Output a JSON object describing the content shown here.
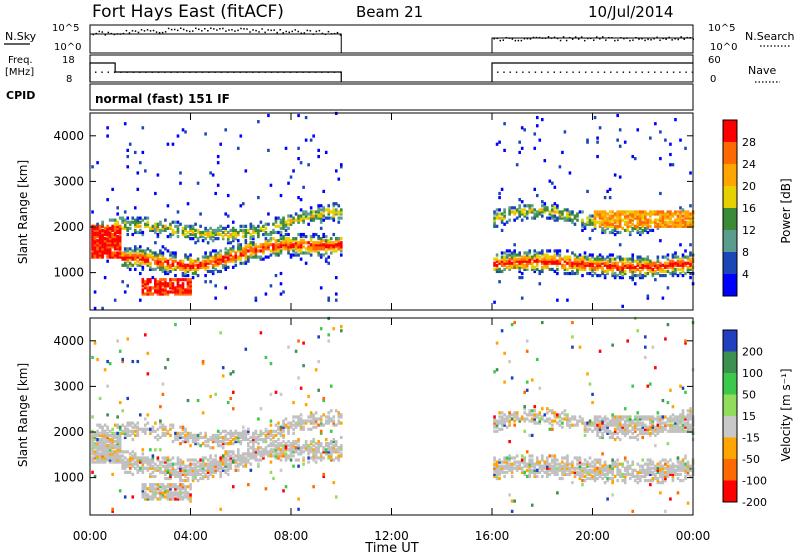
{
  "header": {
    "station": "Fort Hays East (fitACF)",
    "beam": "Beam 21",
    "date": "10/Jul/2014"
  },
  "status_panels": {
    "nsky_label": "N.Sky",
    "nsky_ticks": [
      "10^5",
      "10^0"
    ],
    "nsearch_label": "N.Search",
    "nsearch_ticks": [
      "10^5",
      "10^0"
    ],
    "freq_label_1": "Freq.",
    "freq_label_2": "[MHz]",
    "freq_ticks": [
      "18",
      "8"
    ],
    "nave_label": "Nave",
    "nave_ticks": [
      "60",
      "0"
    ],
    "cpid_label": "CPID",
    "cpid_value": "normal (fast) 151 IF"
  },
  "chart_data": [
    {
      "type": "heatmap",
      "title": "",
      "ylabel": "Slant Range [km]",
      "xlabel": "",
      "x_ticks": [
        "00:00",
        "04:00",
        "08:00",
        "12:00",
        "16:00",
        "20:00",
        "00:00"
      ],
      "y_ticks": [
        1000,
        2000,
        3000,
        4000
      ],
      "xlim_hours": [
        0,
        24
      ],
      "ylim_km": [
        180,
        4500
      ],
      "data_gaps_hours": [
        [
          10,
          16
        ]
      ],
      "colorbar_label": "Power [dB]",
      "colorbar_ticks": [
        28,
        24,
        20,
        16,
        12,
        8,
        4
      ],
      "colorbar_colors": [
        "#ff0000",
        "#ff6a00",
        "#ffa500",
        "#e6d000",
        "#3a8a3a",
        "#5a9d8c",
        "#1a46b8",
        "#0000ff"
      ],
      "bands": [
        {
          "t_start": 0,
          "t_end": 10,
          "range_km": [
            1150,
            2200
          ],
          "peak_db": 28
        },
        {
          "t_start": 2,
          "t_end": 4,
          "range_km": [
            500,
            800
          ],
          "peak_db": 28
        },
        {
          "t_start": 16,
          "t_end": 24,
          "range_km": [
            700,
            2400
          ],
          "peak_db": 24
        }
      ]
    },
    {
      "type": "heatmap",
      "title": "",
      "ylabel": "Slant Range [km]",
      "xlabel": "Time UT",
      "x_ticks": [
        "00:00",
        "04:00",
        "08:00",
        "12:00",
        "16:00",
        "20:00",
        "00:00"
      ],
      "y_ticks": [
        1000,
        2000,
        3000,
        4000
      ],
      "xlim_hours": [
        0,
        24
      ],
      "ylim_km": [
        180,
        4500
      ],
      "data_gaps_hours": [
        [
          10,
          16
        ]
      ],
      "colorbar_label": "Velocity [m s⁻¹]",
      "colorbar_ticks": [
        200,
        100,
        50,
        15,
        -15,
        -50,
        -100,
        -200
      ],
      "colorbar_colors": [
        "#2040c0",
        "#3c9050",
        "#3cc84a",
        "#8fdd5a",
        "#c8c8c8",
        "#ffa500",
        "#ff6a00",
        "#ff0000"
      ],
      "ground_scatter_color": "#c0c0c0"
    }
  ]
}
